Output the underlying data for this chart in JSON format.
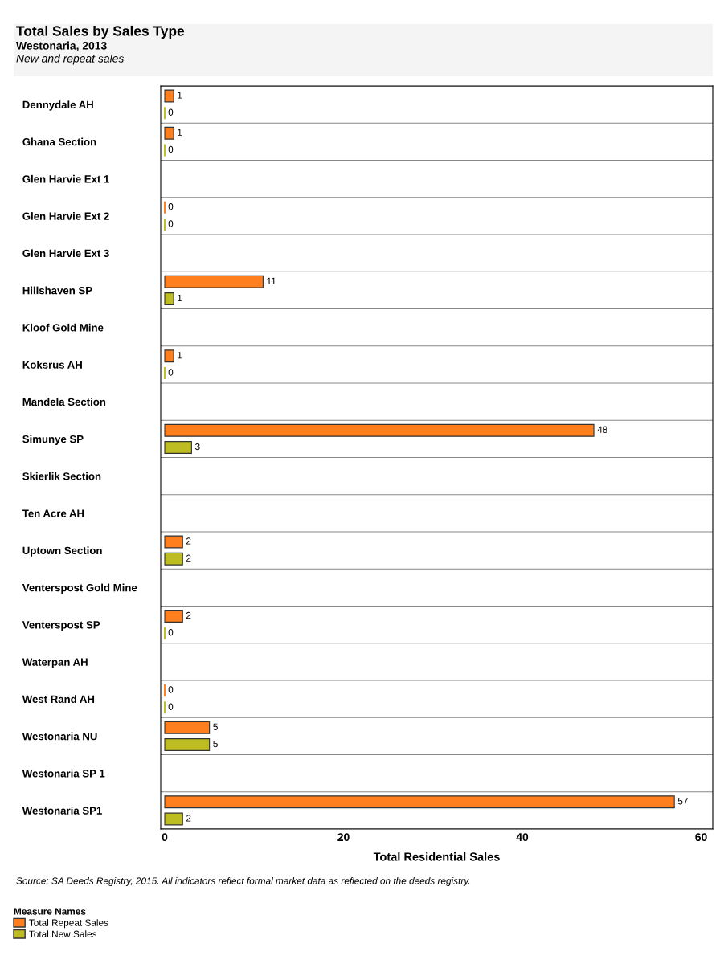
{
  "chart_data": {
    "type": "bar",
    "orientation": "horizontal",
    "title": "Total Sales by Sales Type",
    "subtitle": "Westonaria, 2013",
    "annotations": [
      "New and repeat sales",
      "Source: SA Deeds Registry, 2015. All indicators reflect formal market data as reflected on the deeds registry."
    ],
    "categories": [
      "Dennydale AH",
      "Ghana Section",
      "Glen Harvie Ext 1",
      "Glen Harvie Ext 2",
      "Glen Harvie Ext 3",
      "Hillshaven SP",
      "Kloof Gold Mine",
      "Koksrus AH",
      "Mandela Section",
      "Simunye SP",
      "Skierlik Section",
      "Ten Acre AH",
      "Uptown Section",
      "Venterspost Gold Mine",
      "Venterspost SP",
      "Waterpan AH",
      "West Rand AH",
      "Westonaria NU",
      "Westonaria SP 1",
      "Westonaria SP1"
    ],
    "series": [
      {
        "name": "Total Repeat Sales",
        "color": "#ff7f1e",
        "values": [
          1,
          1,
          null,
          0,
          null,
          11,
          null,
          1,
          null,
          48,
          null,
          null,
          2,
          null,
          2,
          null,
          0,
          5,
          null,
          57
        ]
      },
      {
        "name": "Total New Sales",
        "color": "#bdbd22",
        "values": [
          0,
          0,
          null,
          0,
          null,
          1,
          null,
          0,
          null,
          3,
          null,
          null,
          2,
          null,
          0,
          null,
          0,
          5,
          null,
          2
        ]
      }
    ],
    "xlabel": "Total Residential Sales",
    "xlim": [
      -0.45,
      61.3
    ],
    "xticks": [
      0,
      20,
      40,
      60
    ],
    "data_labels": true,
    "legend": "bottom",
    "legend_title": "Measure Names",
    "grid": false
  }
}
